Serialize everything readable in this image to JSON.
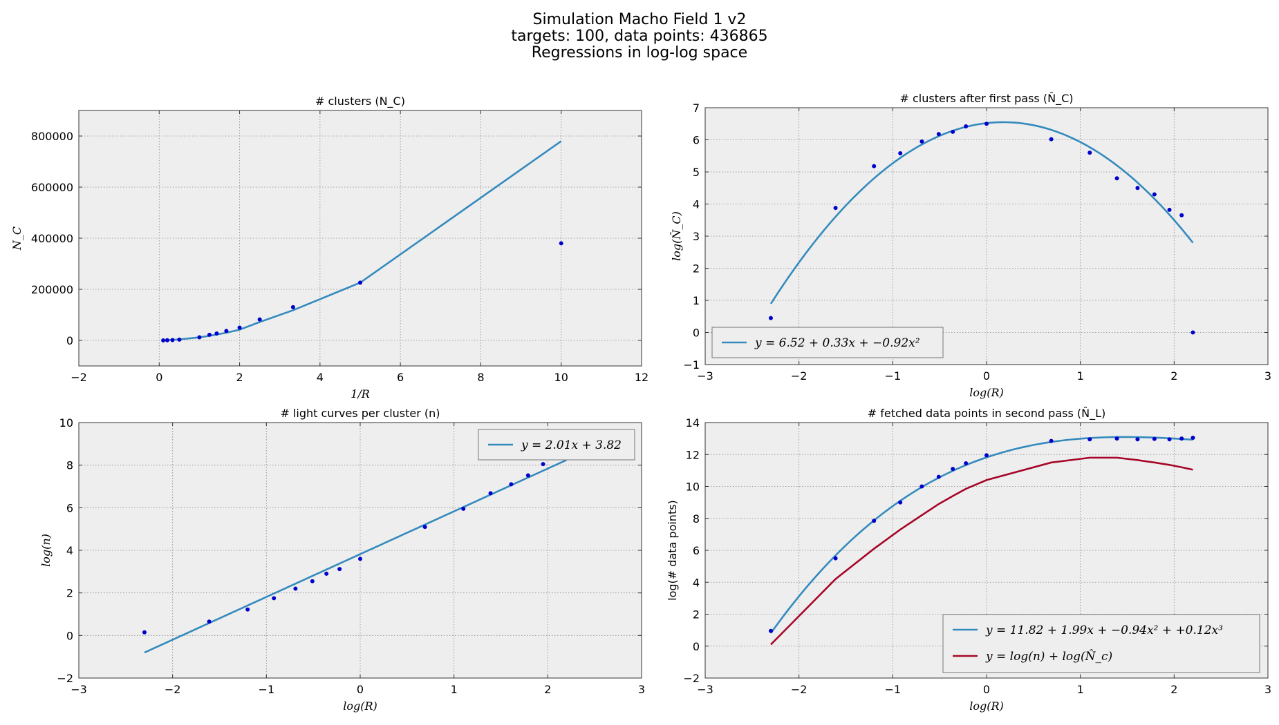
{
  "figure": {
    "title_lines": [
      "Simulation Macho Field 1 v2",
      "targets: 100,   data points: 436865",
      "Regressions in log-log space"
    ],
    "colors": {
      "fit_blue": "#348abd",
      "point_blue": "#0000cc",
      "fit_red": "#a60628",
      "axes_bg": "#eeeeee"
    }
  },
  "chart_data": [
    {
      "type": "scatter",
      "title": "# clusters (N_C)",
      "xlabel": "1/R",
      "ylabel": "N_C",
      "xlim": [
        -2,
        12
      ],
      "ylim": [
        -100000,
        900000
      ],
      "xticks": [
        -2,
        0,
        2,
        4,
        6,
        8,
        10,
        12
      ],
      "yticks": [
        0,
        200000,
        400000,
        600000,
        800000
      ],
      "xtick_labels": [
        "−2",
        "0",
        "2",
        "4",
        "6",
        "8",
        "10",
        "12"
      ],
      "ytick_labels": [
        "0",
        "200000",
        "400000",
        "600000",
        "800000"
      ],
      "grid": true,
      "points": [
        [
          0.1,
          0
        ],
        [
          0.2,
          600
        ],
        [
          0.33,
          1500
        ],
        [
          0.5,
          3000
        ],
        [
          1.0,
          12000
        ],
        [
          1.25,
          22000
        ],
        [
          1.43,
          27000
        ],
        [
          1.67,
          37000
        ],
        [
          2.0,
          50000
        ],
        [
          2.5,
          82000
        ],
        [
          3.33,
          130000
        ],
        [
          5.0,
          226000
        ],
        [
          10.0,
          380000
        ]
      ],
      "series": [
        {
          "type": "line",
          "points": [
            [
              0.1,
              0
            ],
            [
              0.2,
              1000
            ],
            [
              0.33,
              2000
            ],
            [
              0.5,
              4000
            ],
            [
              1.0,
              12000
            ],
            [
              1.25,
              18000
            ],
            [
              1.43,
              23000
            ],
            [
              1.67,
              30000
            ],
            [
              2.0,
              42000
            ],
            [
              2.5,
              72000
            ],
            [
              3.33,
              118000
            ],
            [
              5.0,
              226000
            ],
            [
              10.0,
              780000
            ]
          ]
        }
      ]
    },
    {
      "type": "scatter",
      "title": "# clusters after first pass (N̂_C)",
      "xlabel": "log(R)",
      "ylabel": "log(N̂_C)",
      "xlim": [
        -3,
        3
      ],
      "ylim": [
        -1,
        7
      ],
      "xticks": [
        -3,
        -2,
        -1,
        0,
        1,
        2,
        3
      ],
      "yticks": [
        -1,
        0,
        1,
        2,
        3,
        4,
        5,
        6,
        7
      ],
      "xtick_labels": [
        "−3",
        "−2",
        "−1",
        "0",
        "1",
        "2",
        "3"
      ],
      "ytick_labels": [
        "−1",
        "0",
        "1",
        "2",
        "3",
        "4",
        "5",
        "6",
        "7"
      ],
      "grid": true,
      "legend": {
        "placement": "lower-left",
        "entries": [
          "y = 6.52 + 0.33x + −0.92x²"
        ]
      },
      "points": [
        [
          -2.3,
          0.45
        ],
        [
          -1.61,
          3.88
        ],
        [
          -1.2,
          5.18
        ],
        [
          -0.92,
          5.58
        ],
        [
          -0.69,
          5.95
        ],
        [
          -0.51,
          6.18
        ],
        [
          -0.36,
          6.25
        ],
        [
          -0.22,
          6.42
        ],
        [
          0.0,
          6.5
        ],
        [
          0.69,
          6.02
        ],
        [
          1.1,
          5.6
        ],
        [
          1.39,
          4.8
        ],
        [
          1.61,
          4.5
        ],
        [
          1.79,
          4.3
        ],
        [
          1.95,
          3.82
        ],
        [
          2.08,
          3.65
        ],
        [
          2.2,
          0.0
        ]
      ],
      "series": [
        {
          "name": "y = 6.52 + 0.33x + −0.92x²",
          "type": "poly",
          "coef": [
            6.52,
            0.33,
            -0.92
          ],
          "x_range": [
            -2.3,
            2.2
          ]
        }
      ]
    },
    {
      "type": "scatter",
      "title": "# light curves per cluster (n)",
      "xlabel": "log(R)",
      "ylabel": "log(n)",
      "xlim": [
        -3,
        3
      ],
      "ylim": [
        -2,
        10
      ],
      "xticks": [
        -3,
        -2,
        -1,
        0,
        1,
        2,
        3
      ],
      "yticks": [
        -2,
        0,
        2,
        4,
        6,
        8,
        10
      ],
      "xtick_labels": [
        "−3",
        "−2",
        "−1",
        "0",
        "1",
        "2",
        "3"
      ],
      "ytick_labels": [
        "−2",
        "0",
        "2",
        "4",
        "6",
        "8",
        "10"
      ],
      "grid": true,
      "legend": {
        "placement": "top-right",
        "entries": [
          "y = 2.01x + 3.82"
        ]
      },
      "points": [
        [
          -2.3,
          0.15
        ],
        [
          -1.61,
          0.65
        ],
        [
          -1.2,
          1.22
        ],
        [
          -0.92,
          1.75
        ],
        [
          -0.69,
          2.2
        ],
        [
          -0.51,
          2.55
        ],
        [
          -0.36,
          2.9
        ],
        [
          -0.22,
          3.12
        ],
        [
          0.0,
          3.6
        ],
        [
          0.69,
          5.1
        ],
        [
          1.1,
          5.95
        ],
        [
          1.39,
          6.68
        ],
        [
          1.61,
          7.1
        ],
        [
          1.79,
          7.52
        ],
        [
          1.95,
          8.05
        ],
        [
          2.08,
          8.35
        ]
      ],
      "series": [
        {
          "name": "y = 2.01x + 3.82",
          "type": "poly",
          "coef": [
            3.82,
            2.01
          ],
          "x_range": [
            -2.3,
            2.2
          ]
        }
      ]
    },
    {
      "type": "scatter",
      "title": "# fetched data points in second pass (N̂_L)",
      "xlabel": "log(R)",
      "ylabel": "log(# data points)",
      "xlim": [
        -3,
        3
      ],
      "ylim": [
        -2,
        14
      ],
      "xticks": [
        -3,
        -2,
        -1,
        0,
        1,
        2,
        3
      ],
      "yticks": [
        -2,
        0,
        2,
        4,
        6,
        8,
        10,
        12,
        14
      ],
      "xtick_labels": [
        "−3",
        "−2",
        "−1",
        "0",
        "1",
        "2",
        "3"
      ],
      "ytick_labels": [
        "−2",
        "0",
        "2",
        "4",
        "6",
        "8",
        "10",
        "12",
        "14"
      ],
      "grid": true,
      "legend": {
        "placement": "lower-right",
        "entries": [
          "y = 11.82 + 1.99x + −0.94x² + +0.12x³",
          "y = log(n) + log(N̂_c)"
        ]
      },
      "points": [
        [
          -2.3,
          0.95
        ],
        [
          -1.61,
          5.5
        ],
        [
          -1.2,
          7.85
        ],
        [
          -0.92,
          9.0
        ],
        [
          -0.69,
          10.0
        ],
        [
          -0.51,
          10.6
        ],
        [
          -0.36,
          11.1
        ],
        [
          -0.22,
          11.45
        ],
        [
          0.0,
          11.95
        ],
        [
          0.69,
          12.85
        ],
        [
          1.1,
          12.95
        ],
        [
          1.39,
          13.0
        ],
        [
          1.61,
          12.95
        ],
        [
          1.79,
          12.98
        ],
        [
          1.95,
          12.95
        ],
        [
          2.08,
          13.0
        ],
        [
          2.2,
          13.05
        ]
      ],
      "series": [
        {
          "name": "y = 11.82 + 1.99x + −0.94x² + +0.12x³",
          "type": "poly",
          "coef": [
            11.82,
            1.99,
            -0.94,
            0.12
          ],
          "x_range": [
            -2.3,
            2.2
          ],
          "color": "#348abd"
        },
        {
          "name": "y = log(n) + log(N̂_c)",
          "type": "line",
          "color": "#a60628",
          "points": [
            [
              -2.3,
              0.1
            ],
            [
              -1.61,
              4.2
            ],
            [
              -1.2,
              6.1
            ],
            [
              -0.92,
              7.3
            ],
            [
              -0.69,
              8.2
            ],
            [
              -0.51,
              8.9
            ],
            [
              -0.36,
              9.4
            ],
            [
              -0.22,
              9.85
            ],
            [
              0.0,
              10.4
            ],
            [
              0.69,
              11.5
            ],
            [
              1.1,
              11.8
            ],
            [
              1.39,
              11.8
            ],
            [
              1.61,
              11.65
            ],
            [
              1.79,
              11.5
            ],
            [
              1.95,
              11.35
            ],
            [
              2.08,
              11.2
            ],
            [
              2.2,
              11.05
            ]
          ]
        }
      ]
    }
  ]
}
